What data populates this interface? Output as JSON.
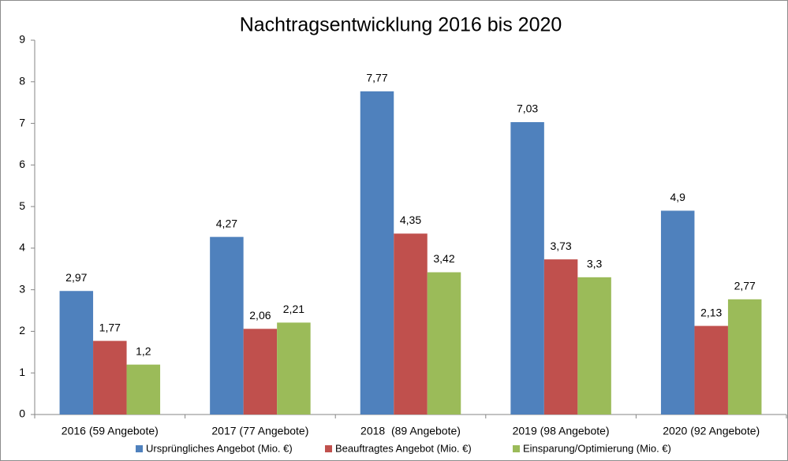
{
  "chart_data": {
    "type": "bar",
    "title": "Nachtragsentwicklung 2016 bis 2020",
    "categories": [
      "2016 (59 Angebote)",
      "2017 (77 Angebote)",
      "2018  (89 Angebote)",
      "2019 (98 Angebote)",
      "2020 (92 Angebote)"
    ],
    "series": [
      {
        "name": "Ursprüngliches Angebot (Mio. €)",
        "color": "#4f81bd",
        "values": [
          2.97,
          4.27,
          7.77,
          7.03,
          4.9
        ],
        "value_labels": [
          "2,97",
          "4,27",
          "7,77",
          "7,03",
          "4,9"
        ]
      },
      {
        "name": "Beauftragtes Angebot (Mio. €)",
        "color": "#c0504d",
        "values": [
          1.77,
          2.06,
          4.35,
          3.73,
          2.13
        ],
        "value_labels": [
          "1,77",
          "2,06",
          "4,35",
          "3,73",
          "2,13"
        ]
      },
      {
        "name": "Einsparung/Optimierung (Mio. €)",
        "color": "#9bbb59",
        "values": [
          1.2,
          2.21,
          3.42,
          3.3,
          2.77
        ],
        "value_labels": [
          "1,2",
          "2,21",
          "3,42",
          "3,3",
          "2,77"
        ]
      }
    ],
    "ylim": [
      0,
      9
    ],
    "yticks": [
      0,
      1,
      2,
      3,
      4,
      5,
      6,
      7,
      8,
      9
    ],
    "grid": false,
    "legend": "bottom"
  }
}
